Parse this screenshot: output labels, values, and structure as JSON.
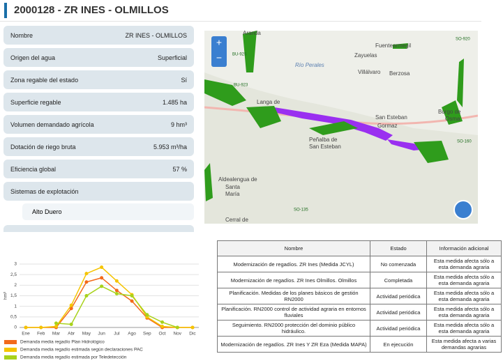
{
  "header": {
    "title": "2000128 - ZR INES - OLMILLOS"
  },
  "properties": [
    {
      "label": "Nombre",
      "value": "ZR INES - OLMILLOS"
    },
    {
      "label": "Origen del agua",
      "value": "Superficial"
    },
    {
      "label": "Zona regable del estado",
      "value": "Sí"
    },
    {
      "label": "Superficie regable",
      "value": "1.485 ha"
    },
    {
      "label": "Volumen demandado agrícola",
      "value": "9 hm³"
    },
    {
      "label": "Dotación de riego bruta",
      "value": "5.953 m³/ha"
    },
    {
      "label": "Eficiencia global",
      "value": "57 %"
    },
    {
      "label": "Sistemas de explotación",
      "items": [
        "Alto Duero"
      ]
    }
  ],
  "map": {
    "controls": [
      "+",
      "−"
    ],
    "labels": [
      "Aranda",
      "Fuentearmegil",
      "Zayuelas",
      "Río Perales",
      "Villálvaro",
      "Berzosa",
      "Langa de",
      "San Esteban",
      "Gormaz",
      "Peñalba de",
      "San Esteban",
      "Burgo de",
      "Osma",
      "Aldealengua de",
      "Santa",
      "María",
      "Cerral de",
      "BU-923",
      "SO-920",
      "BU-925",
      "SO-160",
      "SO-135"
    ]
  },
  "chart_data": {
    "type": "line",
    "y_label": "hm³",
    "categories": [
      "Ene",
      "Feb",
      "Mar",
      "Abr",
      "May",
      "Jun",
      "Jul",
      "Ago",
      "Sep",
      "Oct",
      "Nov",
      "Dic"
    ],
    "ylim": [
      0,
      3
    ],
    "yticks": [
      0,
      {
        "value": 0.5,
        "label": "0,5"
      },
      1,
      {
        "value": 1.5,
        "label": "1,5"
      },
      2,
      {
        "value": 2.5,
        "label": "2,5"
      },
      3
    ],
    "grid": true,
    "series": [
      {
        "name": "Demanda media regadío Plan Hidrológico",
        "color": "#f26a1b",
        "values": [
          0,
          0,
          0,
          0.9,
          2.15,
          2.35,
          1.75,
          1.25,
          0.45,
          0,
          0,
          0
        ]
      },
      {
        "name": "Demanda media regadío estimada según declaraciones PAC",
        "color": "#f5c400",
        "values": [
          0,
          0,
          0.05,
          1.05,
          2.55,
          2.85,
          2.2,
          1.55,
          0.5,
          0.05,
          0,
          0
        ]
      },
      {
        "name": "Demanda media regadío estimada por Teledetección",
        "color": "#a8d21c",
        "values": [
          null,
          null,
          0.2,
          0.15,
          1.5,
          1.95,
          1.6,
          1.5,
          0.6,
          0.25,
          0,
          null
        ]
      }
    ]
  },
  "table": {
    "headers": [
      "Nombre",
      "Estado",
      "Información adicional"
    ],
    "rows": [
      [
        "Modernización de regadíos. ZR Ines (Medida JCYL)",
        "No comenzada",
        "Esta medida afecta sólo a esta demanda agraria"
      ],
      [
        "Modernización de regadíos. ZR Ines Olmillos. Olmillos",
        "Completada",
        "Esta medida afecta sólo a esta demanda agraria"
      ],
      [
        "Planificación. Medidas de los planes básicos de gestión RN2000",
        "Actividad periódica",
        "Esta medida afecta sólo a esta demanda agraria"
      ],
      [
        "Planificación. RN2000 control de actividad agraria en entornos fluviales",
        "Actividad periódica",
        "Esta medida afecta sólo a esta demanda agraria"
      ],
      [
        "Seguimiento. RN2000 protección del dominio público hidráulico.",
        "Actividad periódica",
        "Esta medida afecta sólo a esta demanda agraria"
      ],
      [
        "Modernización de regadíos. ZR Ines Y ZR Eza (Medida MAPA)",
        "En ejecución",
        "Esta medida afecta a varias demandas agrarias"
      ]
    ]
  }
}
